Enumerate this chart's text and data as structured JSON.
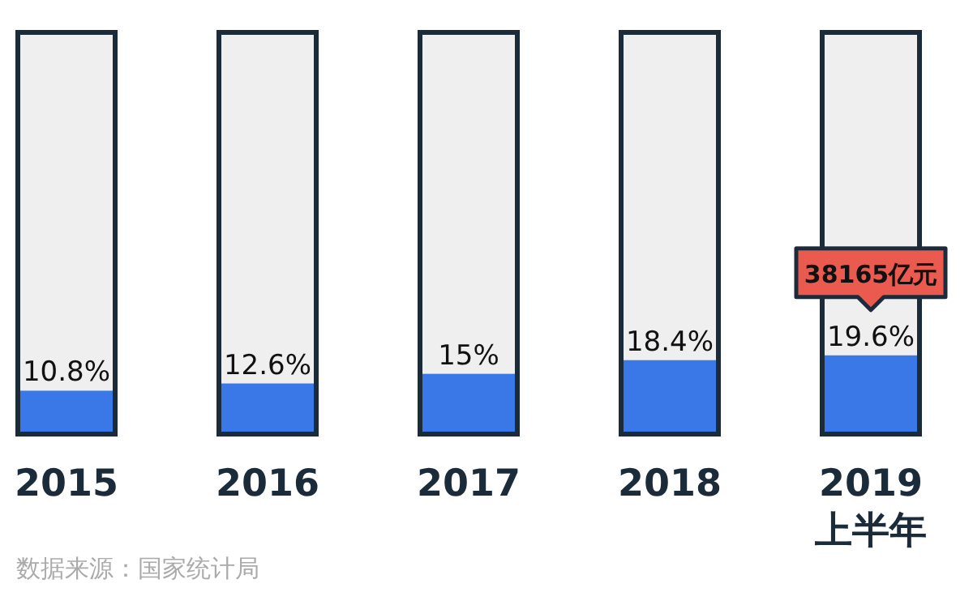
{
  "chart_data": {
    "type": "bar",
    "categories": [
      "2015",
      "2016",
      "2017",
      "2018",
      "2019\n上半年"
    ],
    "values": [
      10.8,
      12.6,
      15,
      18.4,
      19.6
    ],
    "value_labels": [
      "10.8%",
      "12.6%",
      "15%",
      "18.4%",
      "19.6%"
    ],
    "color": "#3a78e8",
    "ylim": [
      0,
      100
    ],
    "annotations": [
      {
        "text": "38165亿元",
        "x": "2019\n上半年",
        "y": 19.6
      },
      "数据来源：国家统计局"
    ]
  }
}
